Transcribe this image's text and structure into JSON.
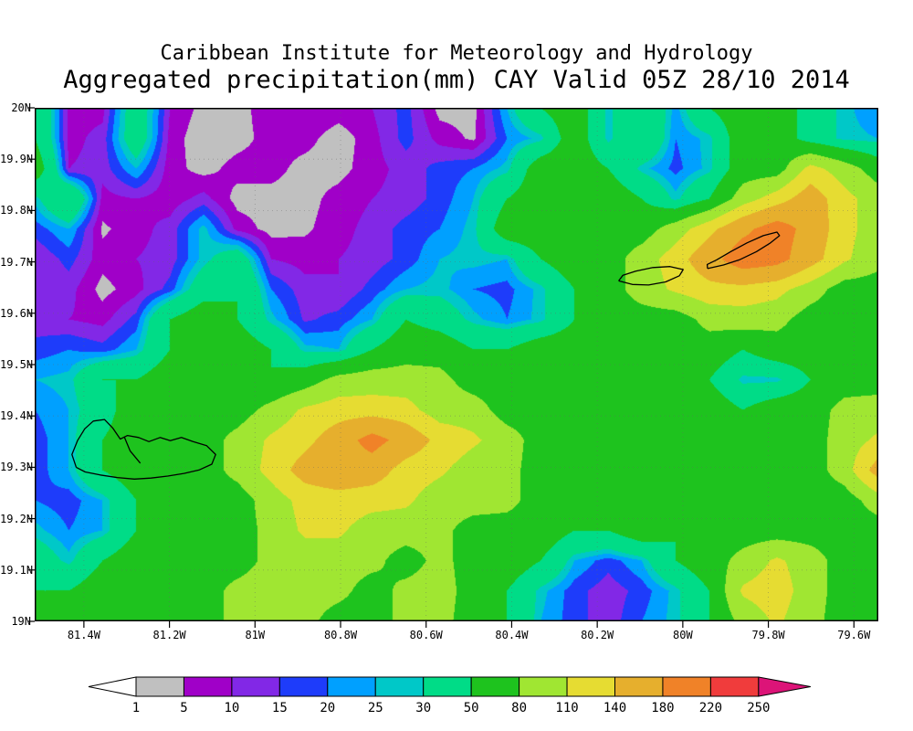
{
  "title": {
    "line1": "Caribbean Institute for Meteorology and Hydrology",
    "line2": "Aggregated precipitation(mm) CAY Valid 05Z 28/10 2014"
  },
  "axes": {
    "lat_ticks": [
      {
        "value": 20.0,
        "label": "20N"
      },
      {
        "value": 19.9,
        "label": "19.9N"
      },
      {
        "value": 19.8,
        "label": "19.8N"
      },
      {
        "value": 19.7,
        "label": "19.7N"
      },
      {
        "value": 19.6,
        "label": "19.6N"
      },
      {
        "value": 19.5,
        "label": "19.5N"
      },
      {
        "value": 19.4,
        "label": "19.4N"
      },
      {
        "value": 19.3,
        "label": "19.3N"
      },
      {
        "value": 19.2,
        "label": "19.2N"
      },
      {
        "value": 19.1,
        "label": "19.1N"
      },
      {
        "value": 19.0,
        "label": "19N"
      }
    ],
    "lon_ticks": [
      {
        "value": 81.4,
        "label": "81.4W"
      },
      {
        "value": 81.2,
        "label": "81.2W"
      },
      {
        "value": 81.0,
        "label": "81W"
      },
      {
        "value": 80.8,
        "label": "80.8W"
      },
      {
        "value": 80.6,
        "label": "80.6W"
      },
      {
        "value": 80.4,
        "label": "80.4W"
      },
      {
        "value": 80.2,
        "label": "80.2W"
      },
      {
        "value": 80.0,
        "label": "80W"
      },
      {
        "value": 79.8,
        "label": "79.8W"
      },
      {
        "value": 79.6,
        "label": "79.6W"
      }
    ]
  },
  "colorbar": {
    "labels": [
      "1",
      "5",
      "10",
      "15",
      "20",
      "25",
      "30",
      "50",
      "80",
      "110",
      "140",
      "180",
      "220",
      "250"
    ],
    "segment_colors": [
      "#c0c0c0",
      "#a000c8",
      "#8228e6",
      "#1e3cfa",
      "#00a0ff",
      "#00c8c8",
      "#00dc87",
      "#1ec31e",
      "#a0e632",
      "#e6dc32",
      "#e6af2d",
      "#f08228",
      "#f03c3c"
    ],
    "under_color": "#ffffff",
    "over_color": "#dc1478"
  },
  "chart_data": {
    "type": "heatmap",
    "variable": "aggregated_precipitation",
    "units": "mm",
    "lon_left_deg_w": 81.515,
    "lon_right_deg_w": 79.543,
    "lat_top": 20.0,
    "lat_bottom": 19.0,
    "levels": [
      1,
      5,
      10,
      15,
      20,
      25,
      30,
      50,
      80,
      110,
      140,
      180,
      220,
      250
    ],
    "palette": [
      "#c0c0c0",
      "#a000c8",
      "#8228e6",
      "#1e3cfa",
      "#00a0ff",
      "#00c8c8",
      "#00dc87",
      "#1ec31e",
      "#a0e632",
      "#e6dc32",
      "#e6af2d",
      "#f08228",
      "#f03c3c"
    ],
    "under_color": "#ffffff",
    "over_color": "#dc1478",
    "grid_mm": [
      [
        50,
        8,
        8,
        40,
        10,
        3,
        3,
        8,
        10,
        8,
        10,
        17,
        3,
        3,
        25,
        50,
        65,
        27,
        50,
        22,
        50,
        65,
        65,
        40,
        27,
        20
      ],
      [
        50,
        8,
        12,
        40,
        8,
        1,
        3,
        7,
        7,
        2,
        8,
        17,
        8,
        4,
        20,
        27,
        65,
        27,
        50,
        20,
        27,
        65,
        65,
        40,
        27,
        25
      ],
      [
        65,
        10,
        12,
        25,
        7,
        3,
        7,
        7,
        3,
        3,
        8,
        12,
        17,
        20,
        27,
        65,
        65,
        50,
        27,
        18,
        27,
        65,
        65,
        120,
        95,
        65
      ],
      [
        27,
        50,
        8,
        10,
        7,
        12,
        3,
        3,
        3,
        7,
        10,
        12,
        17,
        25,
        50,
        65,
        65,
        65,
        50,
        27,
        50,
        95,
        125,
        160,
        120,
        95
      ],
      [
        17,
        25,
        4,
        8,
        12,
        27,
        8,
        3,
        4,
        8,
        12,
        17,
        20,
        27,
        65,
        65,
        65,
        65,
        65,
        95,
        130,
        170,
        200,
        165,
        120,
        95
      ],
      [
        10,
        17,
        7,
        10,
        12,
        27,
        40,
        10,
        8,
        10,
        12,
        17,
        25,
        27,
        25,
        50,
        65,
        65,
        95,
        125,
        165,
        205,
        195,
        155,
        115,
        90
      ],
      [
        10,
        12,
        3,
        8,
        17,
        40,
        50,
        20,
        12,
        10,
        17,
        25,
        27,
        20,
        18,
        27,
        50,
        65,
        95,
        115,
        130,
        130,
        120,
        95,
        65,
        65
      ],
      [
        12,
        10,
        8,
        17,
        50,
        65,
        50,
        27,
        14,
        17,
        25,
        50,
        40,
        27,
        20,
        27,
        50,
        65,
        65,
        65,
        90,
        95,
        90,
        65,
        65,
        50
      ],
      [
        17,
        20,
        17,
        25,
        50,
        65,
        65,
        50,
        27,
        25,
        50,
        65,
        65,
        50,
        50,
        65,
        65,
        65,
        65,
        65,
        65,
        50,
        65,
        65,
        65,
        65
      ],
      [
        25,
        27,
        50,
        50,
        65,
        65,
        65,
        50,
        65,
        90,
        95,
        95,
        90,
        65,
        65,
        65,
        65,
        65,
        50,
        65,
        50,
        27,
        27,
        50,
        65,
        65
      ],
      [
        20,
        25,
        40,
        65,
        65,
        65,
        65,
        90,
        115,
        125,
        125,
        120,
        95,
        95,
        65,
        65,
        65,
        50,
        65,
        65,
        65,
        50,
        65,
        65,
        90,
        95
      ],
      [
        17,
        25,
        50,
        65,
        65,
        65,
        90,
        115,
        130,
        160,
        195,
        165,
        130,
        115,
        95,
        65,
        65,
        65,
        65,
        65,
        65,
        65,
        65,
        65,
        95,
        115
      ],
      [
        17,
        25,
        50,
        65,
        50,
        65,
        90,
        120,
        155,
        170,
        160,
        125,
        115,
        95,
        90,
        65,
        65,
        65,
        65,
        65,
        65,
        65,
        65,
        65,
        95,
        155
      ],
      [
        20,
        17,
        25,
        50,
        65,
        65,
        65,
        95,
        120,
        125,
        120,
        115,
        95,
        95,
        90,
        65,
        65,
        50,
        65,
        65,
        65,
        50,
        65,
        65,
        65,
        95
      ],
      [
        27,
        20,
        25,
        50,
        65,
        50,
        65,
        90,
        115,
        115,
        95,
        95,
        90,
        65,
        65,
        65,
        50,
        50,
        65,
        50,
        65,
        65,
        65,
        65,
        65,
        65
      ],
      [
        40,
        27,
        50,
        65,
        50,
        65,
        65,
        90,
        95,
        95,
        90,
        65,
        90,
        65,
        65,
        50,
        25,
        17,
        25,
        50,
        65,
        90,
        115,
        95,
        65,
        65
      ],
      [
        50,
        50,
        65,
        65,
        50,
        65,
        90,
        95,
        95,
        90,
        65,
        90,
        95,
        65,
        50,
        27,
        17,
        12,
        17,
        27,
        50,
        115,
        125,
        95,
        65,
        65
      ],
      [
        65,
        65,
        65,
        50,
        65,
        65,
        90,
        95,
        90,
        65,
        65,
        90,
        90,
        65,
        50,
        25,
        17,
        12,
        20,
        27,
        50,
        90,
        115,
        90,
        65,
        50
      ]
    ],
    "islands": {
      "grand_cayman": [
        [
          81.418,
          19.3
        ],
        [
          81.428,
          19.325
        ],
        [
          81.415,
          19.352
        ],
        [
          81.398,
          19.375
        ],
        [
          81.378,
          19.39
        ],
        [
          81.352,
          19.393
        ],
        [
          81.332,
          19.376
        ],
        [
          81.315,
          19.355
        ],
        [
          81.298,
          19.362
        ],
        [
          81.272,
          19.358
        ],
        [
          81.248,
          19.35
        ],
        [
          81.222,
          19.358
        ],
        [
          81.198,
          19.352
        ],
        [
          81.172,
          19.358
        ],
        [
          81.145,
          19.35
        ],
        [
          81.113,
          19.342
        ],
        [
          81.092,
          19.325
        ],
        [
          81.101,
          19.306
        ],
        [
          81.13,
          19.295
        ],
        [
          81.166,
          19.288
        ],
        [
          81.204,
          19.283
        ],
        [
          81.243,
          19.279
        ],
        [
          81.282,
          19.277
        ],
        [
          81.322,
          19.28
        ],
        [
          81.362,
          19.285
        ],
        [
          81.397,
          19.291
        ],
        [
          81.418,
          19.3
        ]
      ],
      "grand_cayman_interior": [
        [
          81.305,
          19.358
        ],
        [
          81.292,
          19.332
        ],
        [
          81.268,
          19.308
        ]
      ],
      "little_cayman": [
        [
          80.15,
          19.663
        ],
        [
          80.118,
          19.656
        ],
        [
          80.08,
          19.655
        ],
        [
          80.04,
          19.661
        ],
        [
          80.008,
          19.673
        ],
        [
          79.999,
          19.685
        ],
        [
          80.03,
          19.691
        ],
        [
          80.07,
          19.689
        ],
        [
          80.11,
          19.682
        ],
        [
          80.14,
          19.674
        ],
        [
          80.15,
          19.663
        ]
      ],
      "cayman_brac": [
        [
          79.942,
          19.687
        ],
        [
          79.905,
          19.694
        ],
        [
          79.868,
          19.704
        ],
        [
          79.828,
          19.72
        ],
        [
          79.795,
          19.737
        ],
        [
          79.774,
          19.751
        ],
        [
          79.78,
          19.758
        ],
        [
          79.812,
          19.751
        ],
        [
          79.85,
          19.737
        ],
        [
          79.888,
          19.72
        ],
        [
          79.921,
          19.704
        ],
        [
          79.943,
          19.695
        ],
        [
          79.942,
          19.687
        ]
      ]
    }
  }
}
